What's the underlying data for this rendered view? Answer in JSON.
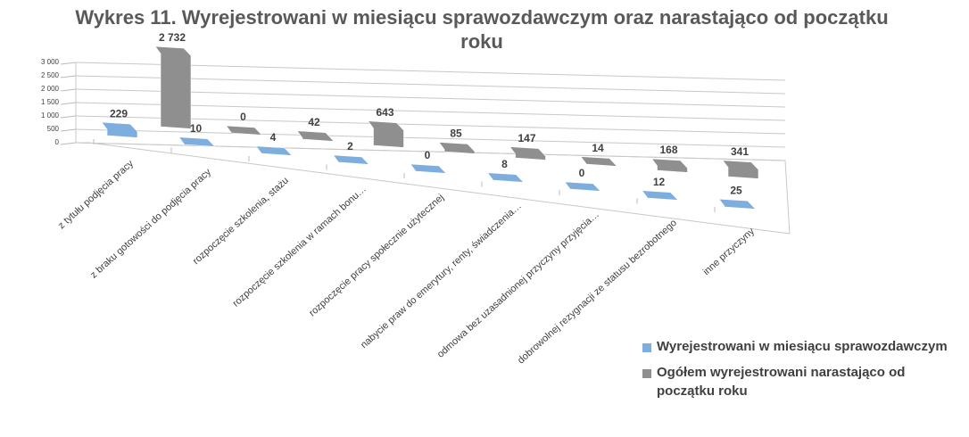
{
  "chart_data": {
    "type": "bar3d",
    "title": "Wykres 11. Wyrejestrowani w miesiącu sprawozdawczym oraz narastająco od początku roku",
    "categories": [
      "z tytułu podjęcia pracy",
      "z braku gotowości do podjęcia pracy",
      "rozpoczęcie szkolenia, stażu",
      "rozpoczęcie szkolenia w ramach bonu…",
      "rozpoczęcie pracy społecznie użytecznej",
      "nabycie praw do emerytury, renty, świadczenia…",
      "odmowa bez uzasadnionej przyczyny przyjęcia…",
      "dobrowolnej rezygnacji ze statusu bezrobotnego",
      "inne przyczyny"
    ],
    "series": [
      {
        "name": "Wyrejestrowani w miesiącu sprawozdawczym",
        "color": "#7eaede",
        "values": [
          229,
          10,
          4,
          2,
          0,
          8,
          0,
          12,
          25
        ]
      },
      {
        "name": "Ogółem wyrejestrowani narastająco od początku roku",
        "color": "#8f8f8f",
        "values": [
          2732,
          0,
          42,
          643,
          85,
          147,
          14,
          168,
          341
        ],
        "value_labels": [
          "2 732",
          "0",
          "42",
          "643",
          "85",
          "147",
          "14",
          "168",
          "341"
        ]
      }
    ],
    "ylim": [
      0,
      3000
    ],
    "yticks": [
      0,
      500,
      {
        "value": 1000,
        "label": "1 000"
      },
      {
        "value": 1500,
        "label": "1 500"
      },
      {
        "value": 2000,
        "label": "2 000"
      },
      {
        "value": 2500,
        "label": "2 500"
      },
      {
        "value": 3000,
        "label": "3 000"
      }
    ],
    "grid": true,
    "legend": "bottom-right"
  }
}
